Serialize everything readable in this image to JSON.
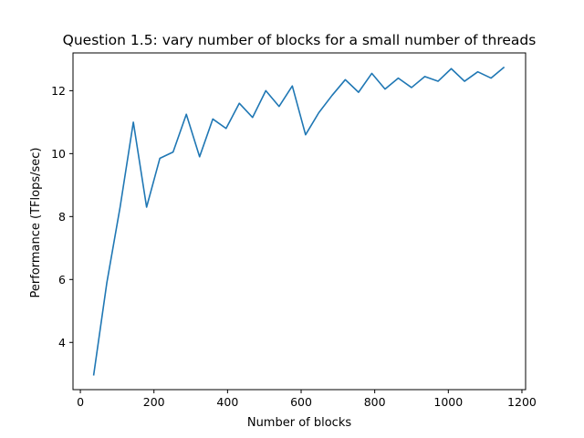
{
  "chart_data": {
    "type": "line",
    "title": "Question 1.5: vary number of blocks for a small number of threads",
    "xlabel": "Number of blocks",
    "ylabel": "Performance (TFlops/sec)",
    "xlim": [
      -20,
      1210
    ],
    "ylim": [
      2.5,
      13.2
    ],
    "xticks": [
      0,
      200,
      400,
      600,
      800,
      1000,
      1200
    ],
    "yticks": [
      4,
      6,
      8,
      10,
      12
    ],
    "grid": false,
    "line_color": "#1f77b4",
    "series": [
      {
        "x": [
          36,
          72,
          108,
          144,
          180,
          216,
          252,
          288,
          324,
          360,
          396,
          432,
          468,
          504,
          540,
          576,
          612,
          648,
          684,
          720,
          756,
          792,
          828,
          864,
          900,
          936,
          972,
          1008,
          1044,
          1080,
          1116,
          1152
        ],
        "values": [
          2.95,
          5.9,
          8.3,
          11.0,
          8.3,
          9.85,
          10.05,
          11.25,
          9.9,
          11.1,
          10.8,
          11.6,
          11.15,
          12.0,
          11.5,
          12.15,
          10.6,
          11.3,
          11.85,
          12.35,
          11.95,
          12.55,
          12.05,
          12.4,
          12.1,
          12.45,
          12.3,
          12.7,
          12.3,
          12.6,
          12.4,
          12.75
        ]
      }
    ]
  }
}
